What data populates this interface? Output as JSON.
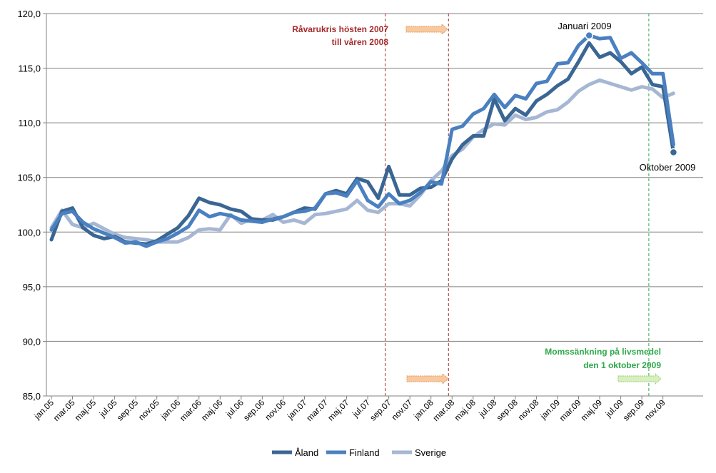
{
  "chart_data": {
    "type": "line",
    "title": "",
    "xlabel": "",
    "ylabel": "",
    "ylim": [
      85,
      120
    ],
    "yticks": [
      "85,0",
      "90,0",
      "95,0",
      "100,0",
      "105,0",
      "110,0",
      "115,0",
      "120,0"
    ],
    "xtick_labels": [
      "jan.05",
      "mar.05",
      "maj.05",
      "jul.05",
      "sep.05",
      "nov.05",
      "jan.06",
      "mar.06",
      "maj.06",
      "jul.06",
      "sep.06",
      "nov.06",
      "jan.07",
      "mar.07",
      "maj.07",
      "jul.07",
      "sep.07",
      "nov.07",
      "jan.08",
      "mar.08",
      "maj.08",
      "jul.08",
      "sep.08",
      "nov.08",
      "jan.09",
      "mar.09",
      "maj.09",
      "jul.09",
      "sep.09",
      "nov.09"
    ],
    "grid": true,
    "legend": "bottom",
    "series": [
      {
        "name": "Åland",
        "color": "#3a6694",
        "values": [
          99.3,
          101.9,
          102.2,
          100.4,
          99.7,
          99.4,
          99.6,
          99.1,
          99.0,
          98.9,
          99.2,
          99.8,
          100.4,
          101.5,
          103.1,
          102.7,
          102.5,
          102.1,
          101.9,
          101.2,
          101.1,
          101.1,
          101.4,
          101.8,
          102.2,
          102.1,
          103.5,
          103.8,
          103.5,
          104.9,
          104.6,
          103.1,
          106.0,
          103.4,
          103.4,
          104.0,
          104.1,
          104.7,
          106.7,
          108.0,
          108.8,
          108.8,
          112.2,
          110.2,
          111.3,
          110.7,
          112.0,
          112.6,
          113.4,
          114.0,
          115.6,
          117.3,
          116.0,
          116.4,
          115.6,
          114.5,
          115.1,
          113.5,
          113.3,
          107.3
        ]
      },
      {
        "name": "Finland",
        "color": "#4a80c0",
        "values": [
          100.2,
          101.7,
          101.9,
          100.9,
          100.3,
          99.9,
          99.5,
          99.0,
          99.1,
          98.7,
          99.1,
          99.4,
          99.9,
          100.5,
          102.0,
          101.4,
          101.7,
          101.5,
          101.1,
          101.0,
          100.9,
          101.2,
          101.4,
          101.8,
          101.9,
          102.2,
          103.5,
          103.6,
          103.3,
          104.7,
          102.9,
          102.3,
          103.5,
          102.6,
          102.9,
          103.6,
          104.6,
          104.4,
          109.4,
          109.7,
          110.8,
          111.3,
          112.6,
          111.4,
          112.5,
          112.2,
          113.6,
          113.8,
          115.4,
          115.5,
          117.1,
          118.0,
          117.7,
          117.8,
          115.9,
          116.4,
          115.5,
          114.5,
          114.5,
          108.0
        ]
      },
      {
        "name": "Sverige",
        "color": "#a6b7d4",
        "values": [
          100.4,
          102.0,
          100.7,
          100.4,
          100.8,
          100.3,
          99.8,
          99.5,
          99.4,
          99.3,
          99.1,
          99.1,
          99.1,
          99.5,
          100.2,
          100.3,
          100.2,
          101.6,
          100.8,
          101.2,
          101.1,
          101.6,
          100.9,
          101.1,
          100.8,
          101.6,
          101.7,
          101.9,
          102.1,
          102.9,
          102.0,
          101.8,
          102.6,
          102.6,
          102.4,
          103.4,
          104.7,
          105.6,
          107.0,
          107.6,
          108.7,
          109.4,
          109.9,
          109.8,
          110.7,
          110.3,
          110.5,
          111.0,
          111.2,
          111.9,
          112.9,
          113.5,
          113.9,
          113.6,
          113.3,
          113.0,
          113.3,
          113.1,
          112.3,
          112.7
        ]
      }
    ],
    "annotations": {
      "crisis_text_1": "Råvarukris hösten 2007",
      "crisis_text_2": "till våren 2008",
      "vat_text_1": "Momssänkning på livsmedel",
      "vat_text_2": "den 1 oktober 2009",
      "jan09_label": "Januari 2009",
      "oct09_label": "Oktober 2009"
    },
    "colors": {
      "crisis_line": "#a52a2a",
      "vat_line": "#2ea84a",
      "grid": "#808080"
    }
  }
}
